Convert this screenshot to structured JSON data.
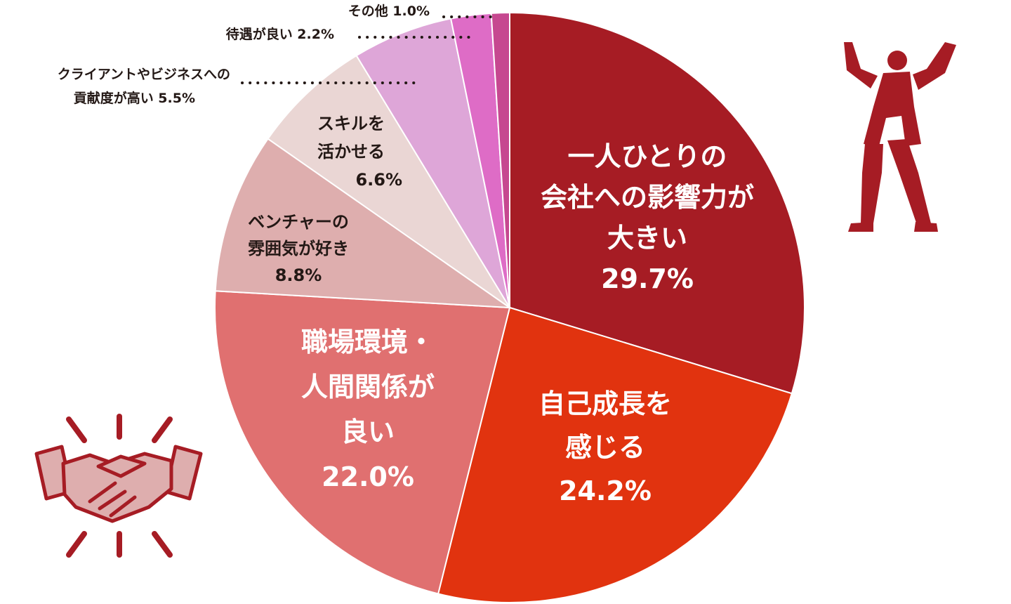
{
  "chart_data": {
    "type": "pie",
    "slices": [
      {
        "lines": [
          "一人ひとりの",
          "会社への影響力が",
          "大きい"
        ],
        "pct_label": "29.7%",
        "value": 29.7,
        "color": "#a61c24",
        "text_color": "#ffffff"
      },
      {
        "lines": [
          "自己成長を",
          "感じる"
        ],
        "pct_label": "24.2%",
        "value": 24.2,
        "color": "#e1330f",
        "text_color": "#ffffff"
      },
      {
        "lines": [
          "職場環境・",
          "人間関係が",
          "良い"
        ],
        "pct_label": "22.0%",
        "value": 22.0,
        "color": "#e07070",
        "text_color": "#ffffff"
      },
      {
        "lines": [
          "ベンチャーの",
          "雰囲気が好き"
        ],
        "pct_label": "8.8%",
        "value": 8.8,
        "color": "#deaeae",
        "text_color": "#231815"
      },
      {
        "lines": [
          "スキルを",
          "活かせる"
        ],
        "pct_label": "6.6%",
        "value": 6.6,
        "color": "#ead6d4",
        "text_color": "#231815"
      },
      {
        "lines": [
          "クライアントやビジネスへの",
          "貢献度が高い"
        ],
        "pct_label": "5.5%",
        "value": 5.5,
        "color": "#dea6d8",
        "text_color": "#231815"
      },
      {
        "lines": [
          "待遇が良い"
        ],
        "pct_label": "2.2%",
        "value": 2.2,
        "color": "#de6cc6",
        "text_color": "#231815"
      },
      {
        "lines": [
          "その他"
        ],
        "pct_label": "1.0%",
        "value": 1.0,
        "color": "#c64890",
        "text_color": "#231815"
      }
    ]
  },
  "icons": {
    "person": {
      "name": "celebrating-person-icon",
      "color": "#a61c24"
    },
    "handshake": {
      "name": "handshake-icon",
      "color": "#a61c24",
      "fill": "#deaeae"
    }
  }
}
